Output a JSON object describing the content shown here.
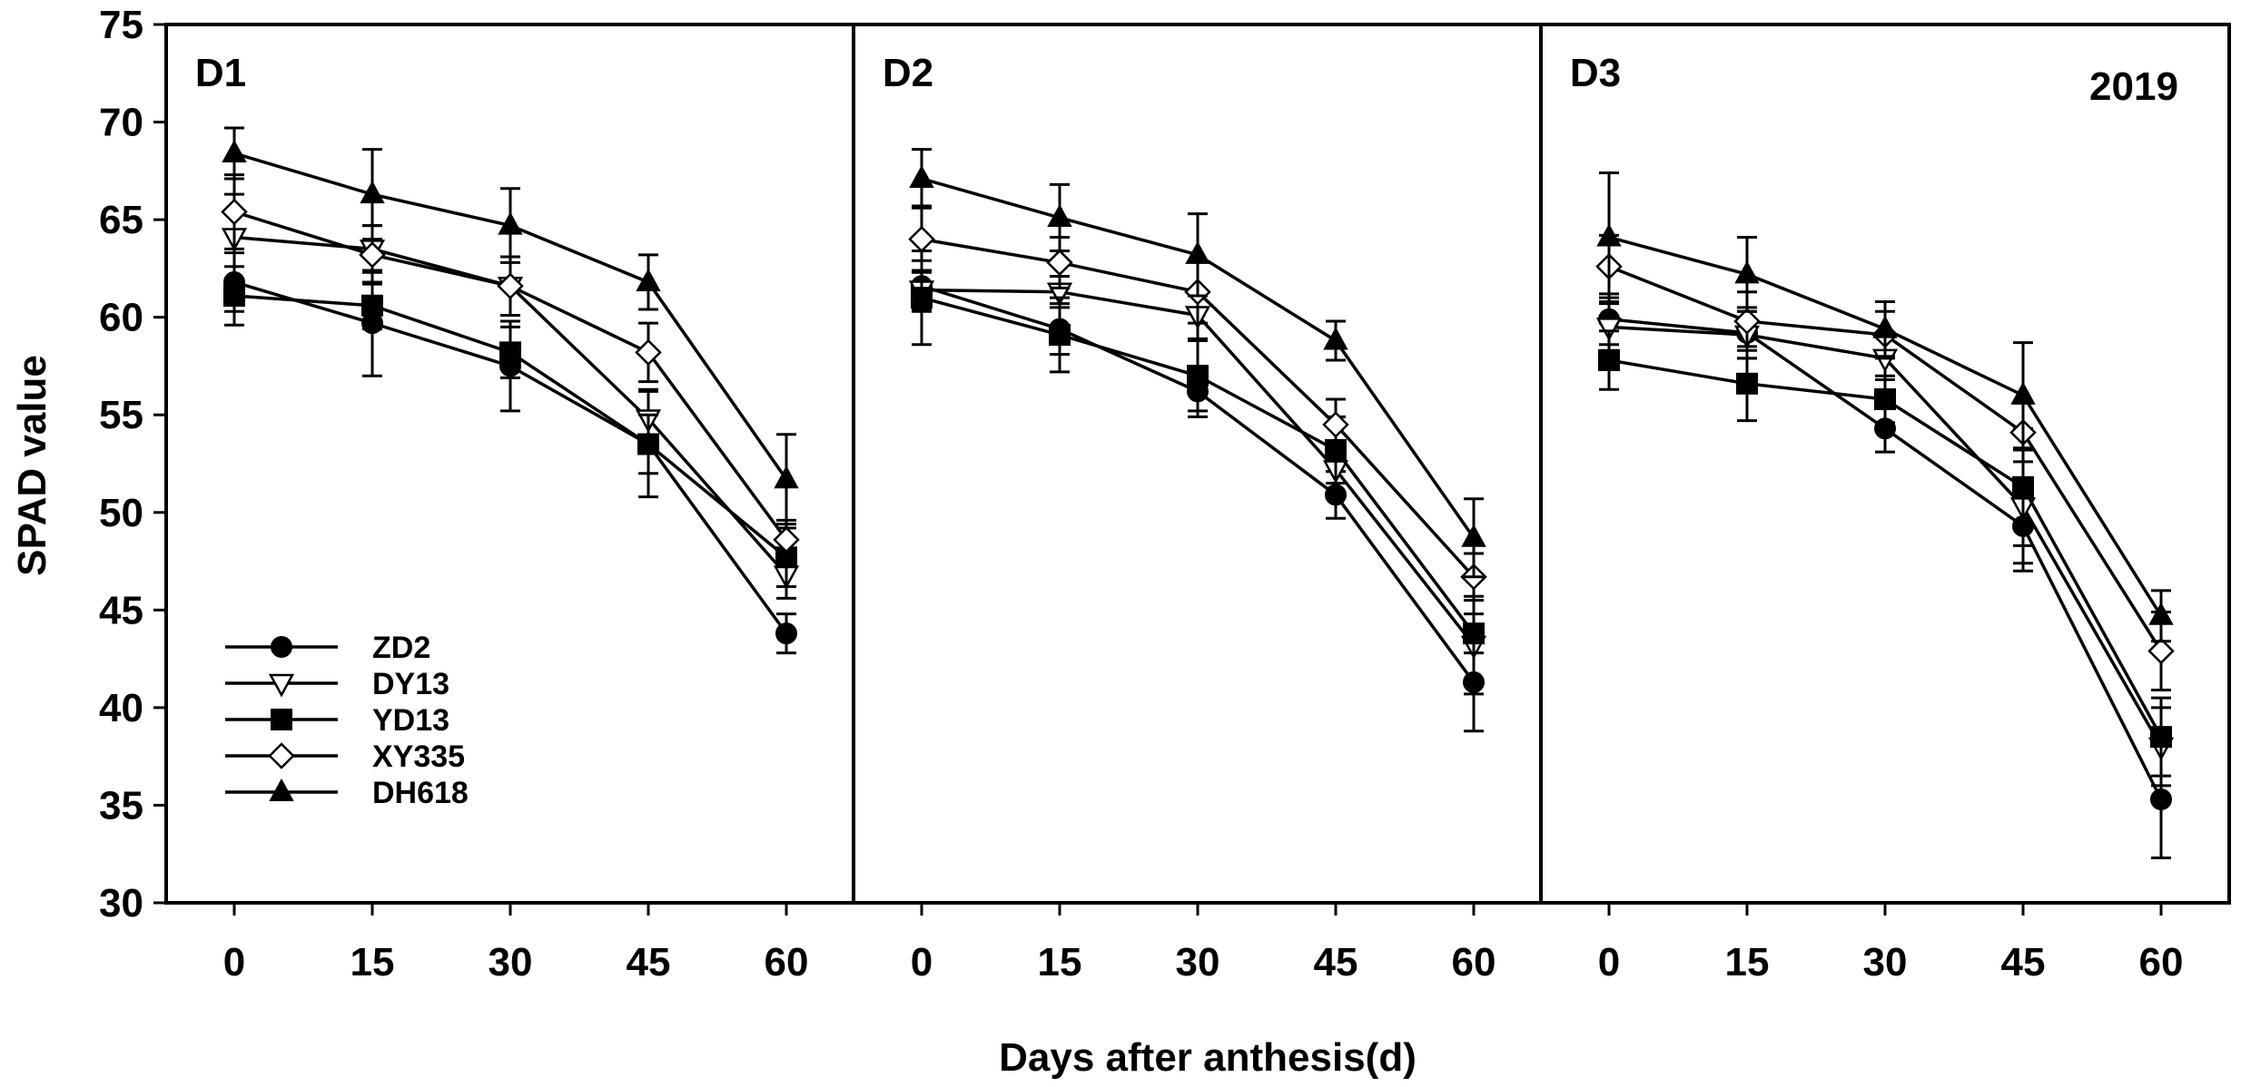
{
  "chart_data": {
    "type": "line",
    "xlabel": "Days after anthesis(d)",
    "ylabel": "SPAD  value",
    "ylim": [
      30,
      75
    ],
    "y_ticks": [
      "30",
      "35",
      "40",
      "45",
      "50",
      "55",
      "60",
      "65",
      "70",
      "75"
    ],
    "x": [
      0,
      15,
      30,
      45,
      60
    ],
    "x_tick_labels": [
      "0",
      "15",
      "30",
      "45",
      "60"
    ],
    "year_label": "2019",
    "legend": [
      "ZD2",
      "DY13",
      "YD13",
      "XY335",
      "DH618"
    ],
    "panels": [
      {
        "label": "D1",
        "series": [
          {
            "name": "ZD2",
            "marker": "circle-filled",
            "values": [
              61.8,
              59.7,
              57.5,
              53.5,
              43.8
            ],
            "errors": [
              1.5,
              2.7,
              2.3,
              2.7,
              1.0
            ]
          },
          {
            "name": "DY13",
            "marker": "triangle-down-open",
            "values": [
              64.1,
              63.5,
              61.6,
              54.8,
              46.8
            ],
            "errors": [
              2.2,
              1.2,
              1.5,
              1.5,
              1.2
            ]
          },
          {
            "name": "YD13",
            "marker": "square-filled",
            "values": [
              61.1,
              60.6,
              58.2,
              53.5,
              47.7
            ],
            "errors": [
              1.5,
              1.2,
              1.3,
              1.5,
              1.5
            ]
          },
          {
            "name": "XY335",
            "marker": "diamond-open",
            "values": [
              65.4,
              63.2,
              61.6,
              58.2,
              48.6
            ],
            "errors": [
              1.9,
              1.5,
              1.5,
              1.5,
              1.0
            ]
          },
          {
            "name": "DH618",
            "marker": "triangle-up-filled",
            "values": [
              68.4,
              66.3,
              64.7,
              61.8,
              51.7
            ],
            "errors": [
              1.3,
              2.3,
              1.9,
              1.4,
              2.3
            ]
          }
        ]
      },
      {
        "label": "D2",
        "series": [
          {
            "name": "ZD2",
            "marker": "circle-filled",
            "values": [
              61.6,
              59.4,
              56.2,
              50.9,
              41.3
            ],
            "errors": [
              1.3,
              1.3,
              1.3,
              1.2,
              2.5
            ]
          },
          {
            "name": "DY13",
            "marker": "triangle-down-open",
            "values": [
              61.4,
              61.3,
              60.1,
              52.2,
              43.2
            ],
            "errors": [
              1.0,
              0.8,
              1.2,
              1.3,
              2.5
            ]
          },
          {
            "name": "YD13",
            "marker": "square-filled",
            "values": [
              61.0,
              59.1,
              57.0,
              53.2,
              43.8
            ],
            "errors": [
              2.4,
              1.9,
              1.8,
              1.7,
              1.0
            ]
          },
          {
            "name": "XY335",
            "marker": "diamond-open",
            "values": [
              64.0,
              62.8,
              61.3,
              54.5,
              46.7
            ],
            "errors": [
              1.7,
              1.3,
              1.6,
              1.3,
              1.2
            ]
          },
          {
            "name": "DH618",
            "marker": "triangle-up-filled",
            "values": [
              67.1,
              65.1,
              63.2,
              58.8,
              48.7
            ],
            "errors": [
              1.5,
              1.7,
              2.1,
              1.0,
              2.0
            ]
          }
        ]
      },
      {
        "label": "D3",
        "series": [
          {
            "name": "ZD2",
            "marker": "circle-filled",
            "values": [
              59.9,
              59.2,
              54.3,
              49.3,
              35.3
            ],
            "errors": [
              1.3,
              1.3,
              1.2,
              2.3,
              3.0
            ]
          },
          {
            "name": "DY13",
            "marker": "triangle-down-open",
            "values": [
              59.5,
              59.1,
              57.9,
              50.3,
              38.0
            ],
            "errors": [
              1.2,
              1.2,
              1.1,
              2.9,
              2.0
            ]
          },
          {
            "name": "YD13",
            "marker": "square-filled",
            "values": [
              57.8,
              56.6,
              55.8,
              51.3,
              38.5
            ],
            "errors": [
              1.5,
              1.9,
              1.2,
              3.0,
              2.0
            ]
          },
          {
            "name": "XY335",
            "marker": "diamond-open",
            "values": [
              62.6,
              59.8,
              59.1,
              54.1,
              42.9
            ],
            "errors": [
              1.6,
              1.5,
              1.2,
              1.5,
              2.0
            ]
          },
          {
            "name": "DH618",
            "marker": "triangle-up-filled",
            "values": [
              64.1,
              62.2,
              59.4,
              56.0,
              44.7
            ],
            "errors": [
              3.3,
              1.9,
              1.4,
              2.7,
              1.3
            ]
          }
        ]
      }
    ]
  }
}
